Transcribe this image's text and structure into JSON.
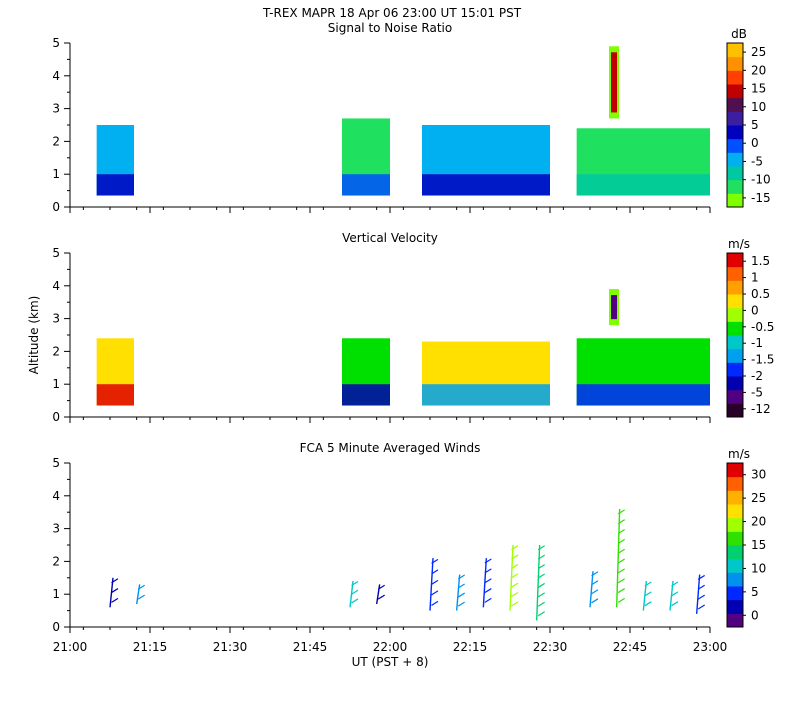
{
  "title": "T-REX  MAPR 18 Apr 06  23:00 UT  15:01  PST",
  "x_axis": {
    "label": "UT  (PST + 8)",
    "range_minutes": [
      0,
      120
    ],
    "ticks": [
      {
        "v": 0,
        "label": "21:00"
      },
      {
        "v": 15,
        "label": "21:15"
      },
      {
        "v": 30,
        "label": "21:30"
      },
      {
        "v": 45,
        "label": "21:45"
      },
      {
        "v": 60,
        "label": "22:00"
      },
      {
        "v": 75,
        "label": "22:15"
      },
      {
        "v": 90,
        "label": "22:30"
      },
      {
        "v": 105,
        "label": "22:45"
      },
      {
        "v": 120,
        "label": "23:00"
      }
    ]
  },
  "y_axis": {
    "label": "Altitude (km)",
    "range": [
      0,
      5
    ],
    "ticks": [
      {
        "v": 0,
        "label": "0"
      },
      {
        "v": 1,
        "label": "1"
      },
      {
        "v": 2,
        "label": "2"
      },
      {
        "v": 3,
        "label": "3"
      },
      {
        "v": 4,
        "label": "4"
      },
      {
        "v": 5,
        "label": "5"
      }
    ]
  },
  "chart_data": [
    {
      "type": "heatmap",
      "title": "Signal to Noise Ratio",
      "units": "dB",
      "xlabel": "UT  (PST + 8)",
      "ylabel": "Altitude (km)",
      "xlim": [
        0,
        120
      ],
      "ylim": [
        0,
        5
      ],
      "colorbar": {
        "colors": [
          "#80ff00",
          "#20e060",
          "#00c8a0",
          "#00b0f0",
          "#0050ff",
          "#0000c0",
          "#3c1ea0",
          "#501050",
          "#c00000",
          "#ff4000",
          "#ff9000",
          "#ffc000"
        ],
        "labels": [
          "-15",
          "-10",
          "-5",
          "0",
          "5",
          "10",
          "15",
          "20",
          "25"
        ]
      },
      "segments": [
        {
          "t_start": 5,
          "t_end": 12,
          "alt_top": 2.5,
          "color": "#00b0f0",
          "lower": "#0000c0"
        },
        {
          "t_start": 51,
          "t_end": 60,
          "alt_top": 2.7,
          "color": "#20e060",
          "lower": "#0050ff"
        },
        {
          "t_start": 66,
          "t_end": 90,
          "alt_top": 2.5,
          "color": "#00b0f0",
          "lower": "#0000c0"
        },
        {
          "t_start": 95,
          "t_end": 120,
          "alt_top": 2.4,
          "color": "#20e060",
          "lower": "#00c8a0"
        }
      ],
      "plume": {
        "t": 102,
        "alt_bottom": 2.7,
        "alt_top": 4.9,
        "color": "#c00000"
      }
    },
    {
      "type": "heatmap",
      "title": "Vertical Velocity",
      "units": "m/s",
      "xlabel": "UT  (PST + 8)",
      "ylabel": "Altitude (km)",
      "xlim": [
        0,
        120
      ],
      "ylim": [
        0,
        5
      ],
      "colorbar": {
        "colors": [
          "#280028",
          "#500080",
          "#0000b0",
          "#0028ff",
          "#00a0f0",
          "#00c8c8",
          "#00e000",
          "#a0ff00",
          "#ffe000",
          "#ffa000",
          "#ff6000",
          "#e00000"
        ],
        "labels": [
          "-12",
          "-5",
          "-2",
          "-1.5",
          "-1",
          "-0.5",
          "0",
          "0.5",
          "1",
          "1.5"
        ]
      },
      "segments": [
        {
          "t_start": 5,
          "t_end": 12,
          "alt_top": 2.4,
          "color": "#ffe000",
          "lower": "#e00000"
        },
        {
          "t_start": 51,
          "t_end": 60,
          "alt_top": 2.4,
          "color": "#00e000",
          "lower": "#0000b0"
        },
        {
          "t_start": 66,
          "t_end": 90,
          "alt_top": 2.3,
          "color": "#ffe000",
          "lower": "#00a0f0"
        },
        {
          "t_start": 95,
          "t_end": 120,
          "alt_top": 2.4,
          "color": "#00e000",
          "lower": "#0028ff"
        }
      ],
      "plume": {
        "t": 102,
        "alt_bottom": 2.8,
        "alt_top": 3.9,
        "color": "#500080"
      }
    },
    {
      "type": "scatter",
      "title": "FCA 5 Minute Averaged Winds",
      "units": "m/s",
      "xlabel": "UT  (PST + 8)",
      "ylabel": "Altitude (km)",
      "xlim": [
        0,
        120
      ],
      "ylim": [
        0,
        5
      ],
      "colorbar": {
        "colors": [
          "#500080",
          "#0000b0",
          "#0028ff",
          "#0090f0",
          "#00c8c8",
          "#00d070",
          "#30e000",
          "#a0ff00",
          "#ffe000",
          "#ffb000",
          "#ff6000",
          "#e00000"
        ],
        "labels": [
          "0",
          "5",
          "10",
          "15",
          "20",
          "25",
          "30"
        ]
      },
      "barbs": [
        {
          "t": 7.5,
          "alt_bottom": 0.6,
          "alt_top": 1.5,
          "speed": 3
        },
        {
          "t": 12.5,
          "alt_bottom": 0.7,
          "alt_top": 1.3,
          "speed": 9
        },
        {
          "t": 52.5,
          "alt_bottom": 0.6,
          "alt_top": 1.4,
          "speed": 10
        },
        {
          "t": 57.5,
          "alt_bottom": 0.7,
          "alt_top": 1.3,
          "speed": 4
        },
        {
          "t": 67.5,
          "alt_bottom": 0.5,
          "alt_top": 2.1,
          "speed": 6
        },
        {
          "t": 72.5,
          "alt_bottom": 0.5,
          "alt_top": 1.6,
          "speed": 7
        },
        {
          "t": 77.5,
          "alt_bottom": 0.6,
          "alt_top": 2.1,
          "speed": 5
        },
        {
          "t": 82.5,
          "alt_bottom": 0.5,
          "alt_top": 2.5,
          "speed": 18
        },
        {
          "t": 87.5,
          "alt_bottom": 0.2,
          "alt_top": 2.5,
          "speed": 14
        },
        {
          "t": 97.5,
          "alt_bottom": 0.6,
          "alt_top": 1.7,
          "speed": 8
        },
        {
          "t": 102.5,
          "alt_bottom": 0.6,
          "alt_top": 3.6,
          "speed": 16
        },
        {
          "t": 107.5,
          "alt_bottom": 0.5,
          "alt_top": 1.4,
          "speed": 11
        },
        {
          "t": 112.5,
          "alt_bottom": 0.5,
          "alt_top": 1.4,
          "speed": 12
        },
        {
          "t": 117.5,
          "alt_bottom": 0.4,
          "alt_top": 1.6,
          "speed": 6
        }
      ]
    }
  ]
}
